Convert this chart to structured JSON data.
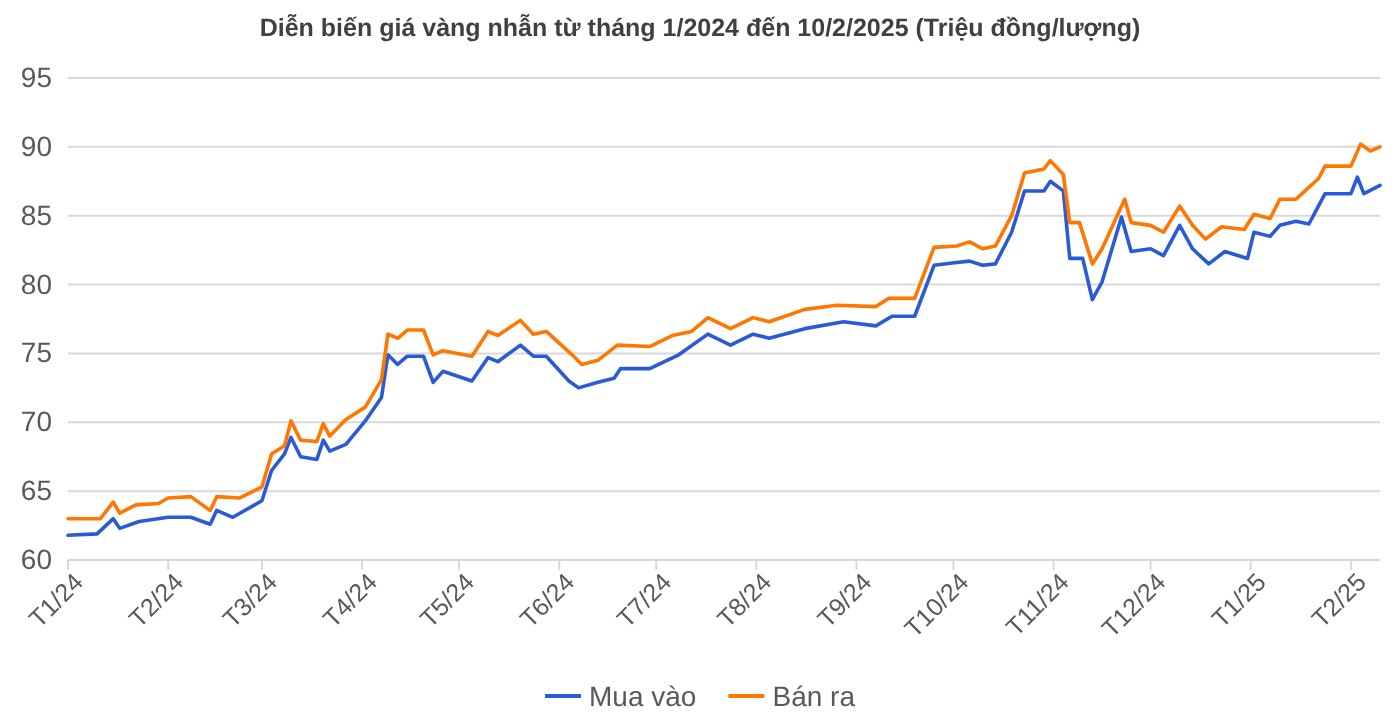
{
  "chart_data": {
    "type": "line",
    "title": "Diễn biến giá vàng nhẫn từ tháng 1/2024 đến 10/2/2025 (Triệu đồng/lượng)",
    "xlim": [
      "2024-01-01",
      "2025-02-10"
    ],
    "xticks": [
      {
        "value": "2024-01-01",
        "label": "T1/24"
      },
      {
        "value": "2024-02-01",
        "label": "T2/24"
      },
      {
        "value": "2024-03-01",
        "label": "T3/24"
      },
      {
        "value": "2024-04-01",
        "label": "T4/24"
      },
      {
        "value": "2024-05-01",
        "label": "T5/24"
      },
      {
        "value": "2024-06-01",
        "label": "T6/24"
      },
      {
        "value": "2024-07-01",
        "label": "T7/24"
      },
      {
        "value": "2024-08-01",
        "label": "T8/24"
      },
      {
        "value": "2024-09-01",
        "label": "T9/24"
      },
      {
        "value": "2024-10-01",
        "label": "T10/24"
      },
      {
        "value": "2024-11-01",
        "label": "T11/24"
      },
      {
        "value": "2024-12-01",
        "label": "T12/24"
      },
      {
        "value": "2025-01-01",
        "label": "T1/25"
      },
      {
        "value": "2025-02-01",
        "label": "T2/25"
      }
    ],
    "ylim": [
      60,
      95
    ],
    "yticks": [
      60,
      65,
      70,
      75,
      80,
      85,
      90,
      95
    ],
    "grid": "y",
    "legend": "bottom",
    "series": [
      {
        "name": "Mua vào",
        "color": "#2a5bd7",
        "x": [
          "2024-01-01",
          "2024-01-10",
          "2024-01-15",
          "2024-01-17",
          "2024-01-23",
          "2024-02-01",
          "2024-02-08",
          "2024-02-14",
          "2024-02-16",
          "2024-02-21",
          "2024-03-01",
          "2024-03-04",
          "2024-03-08",
          "2024-03-10",
          "2024-03-13",
          "2024-03-18",
          "2024-03-20",
          "2024-03-22",
          "2024-03-27",
          "2024-04-02",
          "2024-04-07",
          "2024-04-09",
          "2024-04-12",
          "2024-04-15",
          "2024-04-20",
          "2024-04-23",
          "2024-04-26",
          "2024-05-05",
          "2024-05-10",
          "2024-05-13",
          "2024-05-20",
          "2024-05-24",
          "2024-05-28",
          "2024-06-04",
          "2024-06-07",
          "2024-06-13",
          "2024-06-18",
          "2024-06-20",
          "2024-06-29",
          "2024-07-08",
          "2024-07-17",
          "2024-07-24",
          "2024-07-31",
          "2024-08-05",
          "2024-08-16",
          "2024-08-28",
          "2024-09-07",
          "2024-09-12",
          "2024-09-19",
          "2024-09-25",
          "2024-10-02",
          "2024-10-06",
          "2024-10-10",
          "2024-10-14",
          "2024-10-19",
          "2024-10-23",
          "2024-10-29",
          "2024-10-31",
          "2024-11-04",
          "2024-11-06",
          "2024-11-10",
          "2024-11-13",
          "2024-11-16",
          "2024-11-22",
          "2024-11-25",
          "2024-12-01",
          "2024-12-05",
          "2024-12-10",
          "2024-12-14",
          "2024-12-19",
          "2024-12-24",
          "2024-12-31",
          "2025-01-02",
          "2025-01-07",
          "2025-01-10",
          "2025-01-15",
          "2025-01-19",
          "2025-01-24",
          "2025-02-01",
          "2025-02-03",
          "2025-02-05",
          "2025-02-10"
        ],
        "values": [
          61.8,
          61.9,
          63.0,
          62.3,
          62.8,
          63.1,
          63.1,
          62.6,
          63.6,
          63.1,
          64.3,
          66.5,
          67.7,
          68.9,
          67.5,
          67.3,
          68.7,
          67.9,
          68.4,
          70.1,
          71.8,
          74.9,
          74.2,
          74.8,
          74.8,
          72.9,
          73.7,
          73.0,
          74.7,
          74.4,
          75.6,
          74.8,
          74.8,
          73.0,
          72.5,
          72.9,
          73.2,
          73.9,
          73.9,
          74.9,
          76.4,
          75.6,
          76.4,
          76.1,
          76.8,
          77.3,
          77.0,
          77.7,
          77.7,
          81.4,
          81.6,
          81.7,
          81.4,
          81.5,
          83.8,
          86.8,
          86.8,
          87.5,
          86.8,
          81.9,
          81.9,
          78.9,
          80.2,
          84.9,
          82.4,
          82.6,
          82.1,
          84.3,
          82.6,
          81.5,
          82.4,
          81.9,
          83.8,
          83.5,
          84.3,
          84.6,
          84.4,
          86.6,
          86.6,
          87.8,
          86.6,
          87.2
        ]
      },
      {
        "name": "Bán ra",
        "color": "#ff7700",
        "x": [
          "2024-01-01",
          "2024-01-11",
          "2024-01-15",
          "2024-01-17",
          "2024-01-22",
          "2024-01-29",
          "2024-02-01",
          "2024-02-08",
          "2024-02-14",
          "2024-02-16",
          "2024-02-23",
          "2024-03-01",
          "2024-03-04",
          "2024-03-08",
          "2024-03-10",
          "2024-03-13",
          "2024-03-18",
          "2024-03-20",
          "2024-03-22",
          "2024-03-27",
          "2024-04-02",
          "2024-04-07",
          "2024-04-09",
          "2024-04-12",
          "2024-04-15",
          "2024-04-20",
          "2024-04-23",
          "2024-04-26",
          "2024-05-05",
          "2024-05-10",
          "2024-05-13",
          "2024-05-20",
          "2024-05-24",
          "2024-05-28",
          "2024-06-05",
          "2024-06-08",
          "2024-06-13",
          "2024-06-19",
          "2024-06-29",
          "2024-07-06",
          "2024-07-12",
          "2024-07-17",
          "2024-07-24",
          "2024-07-31",
          "2024-08-05",
          "2024-08-16",
          "2024-08-26",
          "2024-09-07",
          "2024-09-11",
          "2024-09-19",
          "2024-09-25",
          "2024-10-02",
          "2024-10-06",
          "2024-10-10",
          "2024-10-14",
          "2024-10-19",
          "2024-10-23",
          "2024-10-29",
          "2024-10-31",
          "2024-11-04",
          "2024-11-06",
          "2024-11-09",
          "2024-11-13",
          "2024-11-16",
          "2024-11-23",
          "2024-11-25",
          "2024-12-01",
          "2024-12-05",
          "2024-12-10",
          "2024-12-14",
          "2024-12-18",
          "2024-12-23",
          "2024-12-30",
          "2025-01-02",
          "2025-01-07",
          "2025-01-10",
          "2025-01-15",
          "2025-01-22",
          "2025-01-24",
          "2025-02-01",
          "2025-02-04",
          "2025-02-07",
          "2025-02-10"
        ],
        "values": [
          63.0,
          63.0,
          64.2,
          63.4,
          64.0,
          64.1,
          64.5,
          64.6,
          63.6,
          64.6,
          64.5,
          65.3,
          67.7,
          68.3,
          70.1,
          68.7,
          68.6,
          69.9,
          69.0,
          70.2,
          71.1,
          73.1,
          76.4,
          76.1,
          76.7,
          76.7,
          74.9,
          75.2,
          74.8,
          76.6,
          76.3,
          77.4,
          76.4,
          76.6,
          74.9,
          74.2,
          74.5,
          75.6,
          75.5,
          76.3,
          76.6,
          77.6,
          76.8,
          77.6,
          77.3,
          78.2,
          78.5,
          78.4,
          79.0,
          79.0,
          82.7,
          82.8,
          83.1,
          82.6,
          82.8,
          85.0,
          88.1,
          88.4,
          89.0,
          88.0,
          84.5,
          84.5,
          81.5,
          82.6,
          86.2,
          84.5,
          84.3,
          83.8,
          85.7,
          84.3,
          83.3,
          84.2,
          84.0,
          85.1,
          84.8,
          86.2,
          86.2,
          87.7,
          88.6,
          88.6,
          90.2,
          89.7,
          90.0
        ]
      }
    ]
  }
}
